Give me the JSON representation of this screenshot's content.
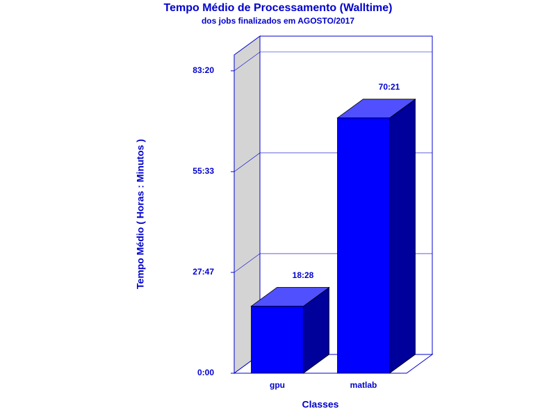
{
  "chart_data": {
    "type": "bar",
    "title": "Tempo Médio de Processamento (Walltime)",
    "subtitle": "dos jobs finalizados em AGOSTO/2017",
    "x_label": "Classes",
    "y_label": "Tempo Médio ( Horas : Minutos )",
    "categories": [
      "gpu",
      "matlab"
    ],
    "values": [
      1108,
      4221
    ],
    "value_labels": [
      "18:28",
      "70:21"
    ],
    "color": "#0000ff",
    "ylim": [
      0,
      5263
    ],
    "yticks": [
      {
        "value": 0,
        "label": "0:00"
      },
      {
        "value": 1667,
        "label": "27:47"
      },
      {
        "value": 3333,
        "label": "55:33"
      },
      {
        "value": 5000,
        "label": "83:20"
      }
    ],
    "grid": true
  }
}
